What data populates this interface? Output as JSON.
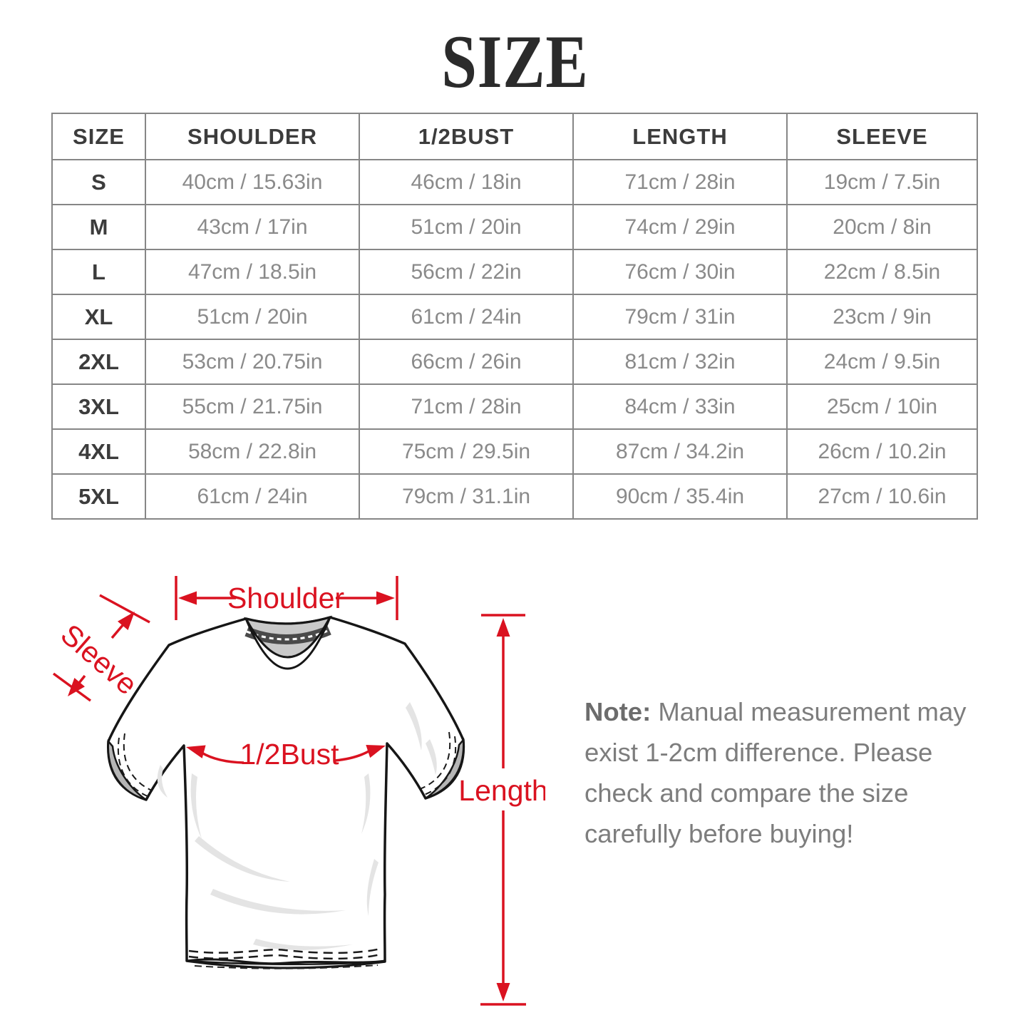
{
  "title": "SIZE",
  "table": {
    "headers": [
      "SIZE",
      "SHOULDER",
      "1/2BUST",
      "LENGTH",
      "SLEEVE"
    ],
    "rows": [
      [
        "S",
        "40cm / 15.63in",
        "46cm / 18in",
        "71cm / 28in",
        "19cm / 7.5in"
      ],
      [
        "M",
        "43cm / 17in",
        "51cm / 20in",
        "74cm / 29in",
        "20cm / 8in"
      ],
      [
        "L",
        "47cm / 18.5in",
        "56cm / 22in",
        "76cm / 30in",
        "22cm / 8.5in"
      ],
      [
        "XL",
        "51cm / 20in",
        "61cm / 24in",
        "79cm / 31in",
        "23cm / 9in"
      ],
      [
        "2XL",
        "53cm / 20.75in",
        "66cm / 26in",
        "81cm / 32in",
        "24cm / 9.5in"
      ],
      [
        "3XL",
        "55cm / 21.75in",
        "71cm / 28in",
        "84cm / 33in",
        "25cm / 10in"
      ],
      [
        "4XL",
        "58cm / 22.8in",
        "75cm / 29.5in",
        "87cm / 34.2in",
        "26cm / 10.2in"
      ],
      [
        "5XL",
        "61cm / 24in",
        "79cm / 31.1in",
        "90cm / 35.4in",
        "27cm / 10.6in"
      ]
    ]
  },
  "diagram": {
    "labels": {
      "shoulder": "Shoulder",
      "sleeve": "Sleeve",
      "half_bust": "1/2Bust",
      "length": "Length"
    },
    "annotation_color": "#da1220"
  },
  "note": {
    "label": "Note:",
    "text": " Manual measurement may exist 1-2cm difference. Please check and compare the size carefully before buying!"
  }
}
